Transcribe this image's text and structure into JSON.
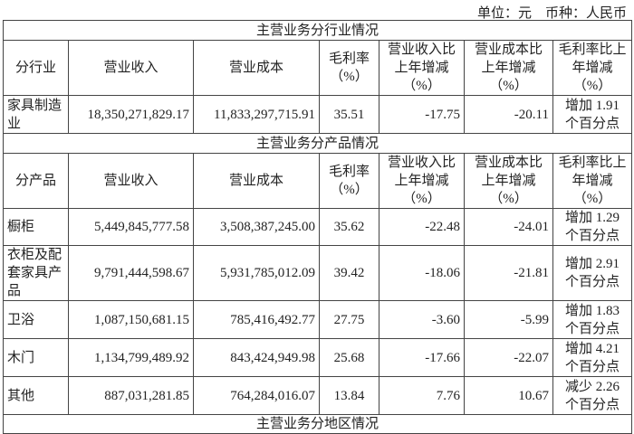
{
  "unit_note": "单位：元　币种：人民币",
  "industry_section": {
    "title": "主营业务分行业情况",
    "headers": [
      "分行业",
      "营业收入",
      "营业成本",
      "毛利率（%）",
      "营业收入比上年增减（%）",
      "营业成本比上年增减（%）",
      "毛利率比上年增减（%）"
    ],
    "rows": [
      [
        "家具制造业",
        "18,350,271,829.17",
        "11,833,297,715.91",
        "35.51",
        "-17.75",
        "-20.11",
        "增加 1.91 个百分点"
      ]
    ]
  },
  "product_section": {
    "title": "主营业务分产品情况",
    "headers": [
      "分产品",
      "营业收入",
      "营业成本",
      "毛利率（%）",
      "营业收入比上年增减（%）",
      "营业成本比上年增减（%）",
      "毛利率比上年增减（%）"
    ],
    "rows": [
      [
        "橱柜",
        "5,449,845,777.58",
        "3,508,387,245.00",
        "35.62",
        "-22.48",
        "-24.01",
        "增加 1.29 个百分点"
      ],
      [
        "衣柜及配套家具产品",
        "9,791,444,598.67",
        "5,931,785,012.09",
        "39.42",
        "-18.06",
        "-21.81",
        "增加 2.91 个百分点"
      ],
      [
        "卫浴",
        "1,087,150,681.15",
        "785,416,492.77",
        "27.75",
        "-3.60",
        "-5.99",
        "增加 1.83 个百分点"
      ],
      [
        "木门",
        "1,134,799,489.92",
        "843,424,949.98",
        "25.68",
        "-17.66",
        "-22.07",
        "增加 4.21 个百分点"
      ],
      [
        "其他",
        "887,031,281.85",
        "764,284,016.07",
        "13.84",
        "7.76",
        "10.67",
        "减少 2.26 个百分点"
      ]
    ]
  },
  "region_section": {
    "title": "主营业务分地区情况"
  }
}
